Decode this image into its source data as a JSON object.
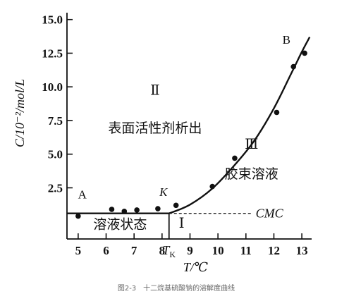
{
  "chart_data": {
    "type": "line",
    "xlabel": "T/℃",
    "ylabel": "C/10⁻²/mol/L",
    "caption": "图2-3　十二烷基硫酸钠的溶解度曲线",
    "xlim": [
      4.6,
      13.3
    ],
    "ylim": [
      -1.3,
      15.3
    ],
    "xticks": [
      "5",
      "6",
      "7",
      "8",
      "9",
      "10",
      "11",
      "12",
      "13"
    ],
    "yticks": [
      "2.5",
      "5.0",
      "7.5",
      "10.0",
      "12.5",
      "15.0"
    ],
    "tk_label": "T",
    "tk_sub": "K",
    "tk_x": 8.25,
    "cmc_label": "CMC",
    "cmc_y": 0.6,
    "series": [
      {
        "points": [
          {
            "x": 5.0,
            "y": 0.4
          },
          {
            "x": 6.2,
            "y": 0.9
          },
          {
            "x": 6.65,
            "y": 0.75
          },
          {
            "x": 7.1,
            "y": 0.85
          },
          {
            "x": 7.85,
            "y": 0.95
          },
          {
            "x": 8.5,
            "y": 1.2
          },
          {
            "x": 9.8,
            "y": 2.6
          },
          {
            "x": 10.6,
            "y": 4.7
          },
          {
            "x": 12.1,
            "y": 8.1
          },
          {
            "x": 12.7,
            "y": 11.5
          },
          {
            "x": 13.1,
            "y": 12.5
          }
        ],
        "curve": [
          {
            "x": 4.6,
            "y": 0.6
          },
          {
            "x": 8.25,
            "y": 0.6
          },
          {
            "x": 9.0,
            "y": 1.25
          },
          {
            "x": 9.8,
            "y": 2.45
          },
          {
            "x": 10.6,
            "y": 4.2
          },
          {
            "x": 11.3,
            "y": 6.0
          },
          {
            "x": 12.0,
            "y": 8.4
          },
          {
            "x": 12.6,
            "y": 10.9
          },
          {
            "x": 13.0,
            "y": 12.6
          },
          {
            "x": 13.28,
            "y": 13.7
          }
        ]
      }
    ],
    "point_labels": [
      {
        "text": "A",
        "x": 5.15,
        "y": 1.7
      },
      {
        "text": "K",
        "x": 8.05,
        "y": 1.9
      },
      {
        "text": "B",
        "x": 12.45,
        "y": 13.2
      }
    ],
    "regions": [
      {
        "roman": "Ⅱ",
        "text": "表面活性剂析出",
        "rx": 7.75,
        "ry": 9.4,
        "tx": 7.75,
        "ty": 6.6
      },
      {
        "roman": "Ⅲ",
        "text": "胶束溶液",
        "rx": 11.2,
        "ry": 5.4,
        "tx": 11.2,
        "ty": 3.2
      },
      {
        "roman": "",
        "text": "溶液状态",
        "rx": 0,
        "ry": 0,
        "tx": 6.5,
        "ty": -0.55
      },
      {
        "roman": "Ⅰ",
        "text": "",
        "rx": 8.7,
        "ry": -0.45,
        "tx": 0,
        "ty": 0
      }
    ]
  }
}
